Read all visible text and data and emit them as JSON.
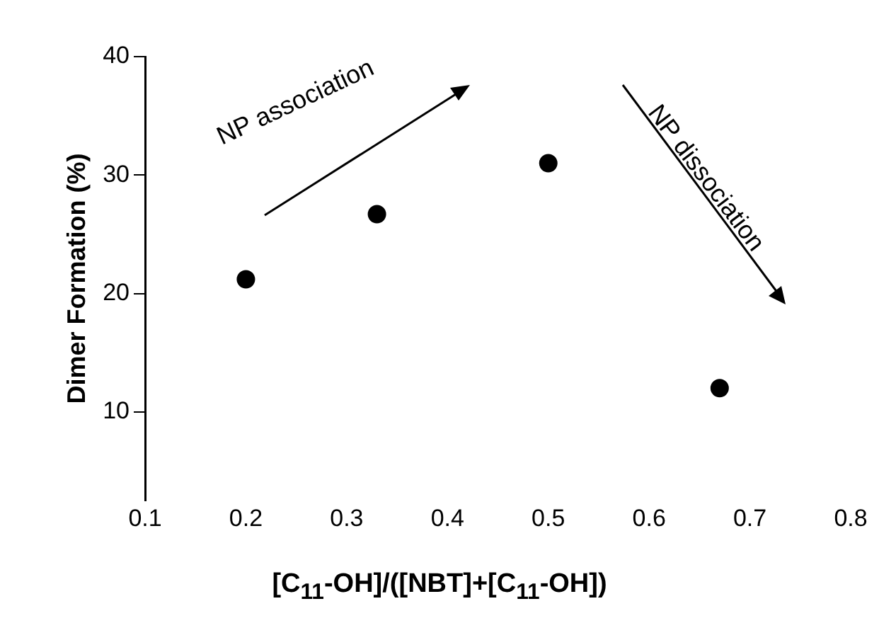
{
  "chart_data": {
    "type": "scatter",
    "xlabel": "[C$_{11}$-OH]/([NBT]+[C$_{11}$-OH])",
    "ylabel": "Dimer Formation (%)",
    "x": [
      0.2,
      0.33,
      0.5,
      0.67
    ],
    "series": [
      {
        "color": "#000000",
        "values": [
          21.2,
          26.7,
          31,
          12
        ]
      }
    ],
    "xlim": [
      0.1,
      0.8
    ],
    "xticks": [
      0.1,
      0.2,
      0.3,
      0.4,
      0.5,
      0.6,
      0.7,
      0.8
    ],
    "ylim": [
      2.5,
      40
    ],
    "yticks": [
      10,
      20,
      30,
      40
    ],
    "grid": false,
    "legend": false,
    "marker": "circle",
    "annotations": [
      "NP association",
      "NP dissociation"
    ]
  }
}
